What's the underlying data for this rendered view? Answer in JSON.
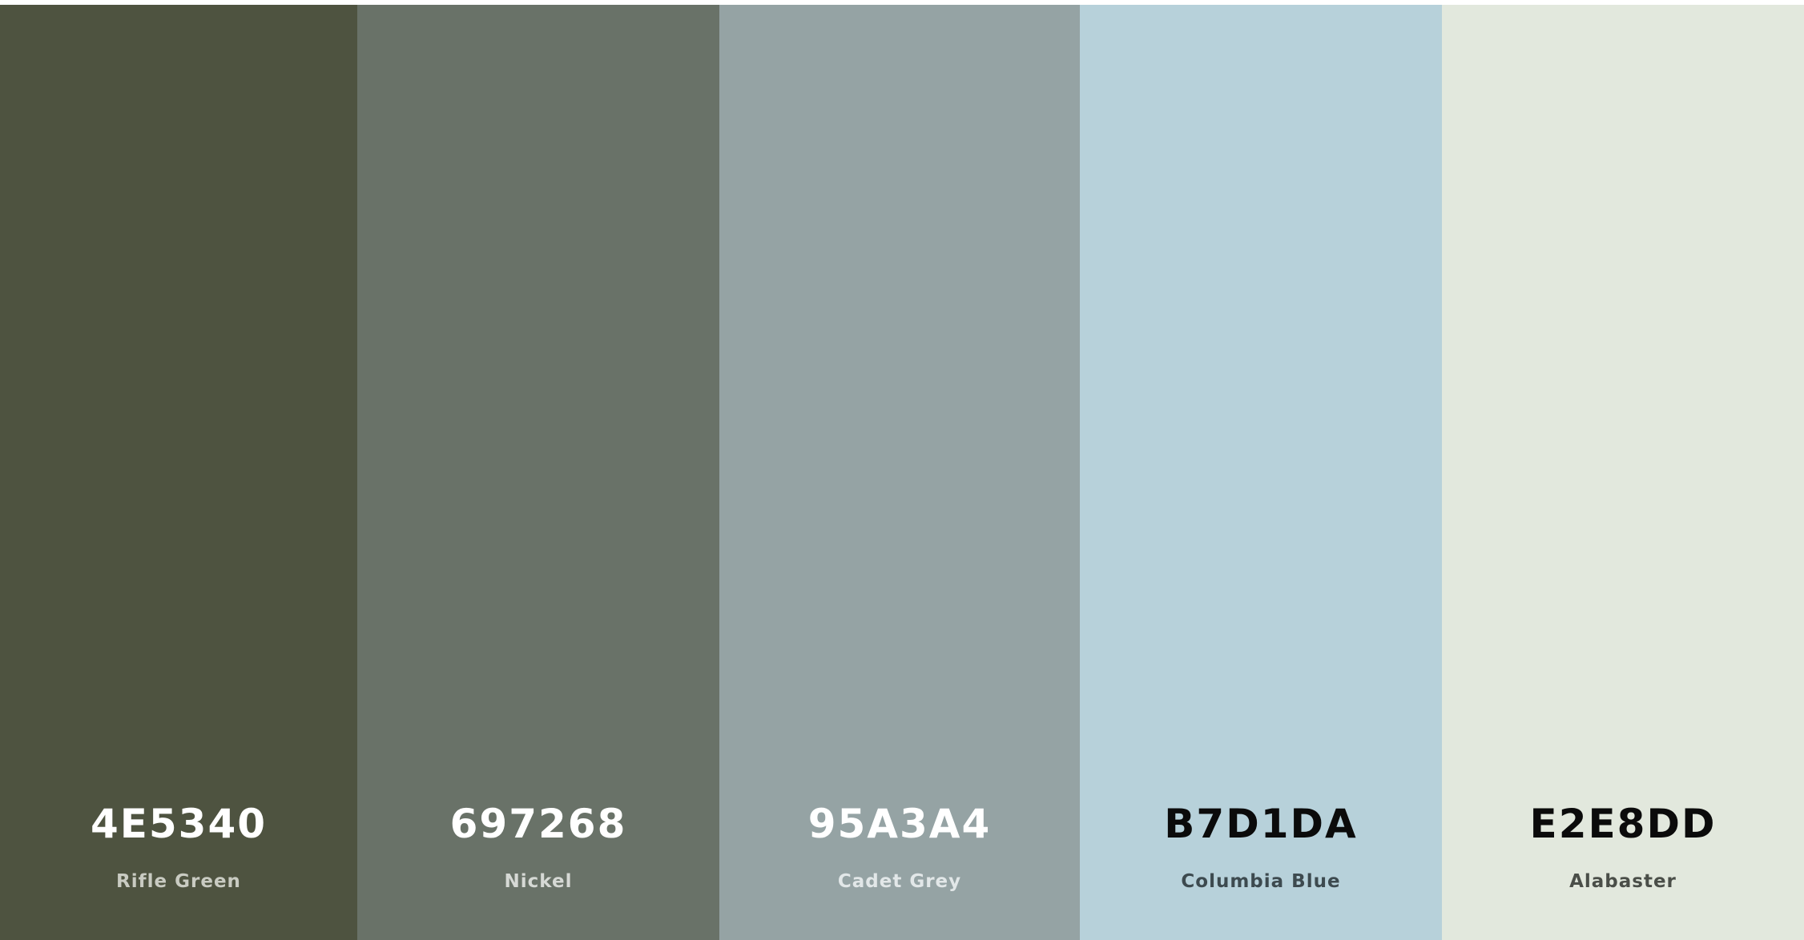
{
  "palette": {
    "swatches": [
      {
        "hex": "4E5340",
        "name": "Rifle Green",
        "bg": "#4E5340",
        "hex_color": "#FFFFFF",
        "name_color": "#C9CBC2"
      },
      {
        "hex": "697268",
        "name": "Nickel",
        "bg": "#697268",
        "hex_color": "#FFFFFF",
        "name_color": "#D6D9D5"
      },
      {
        "hex": "95A3A4",
        "name": "Cadet Grey",
        "bg": "#95A3A4",
        "hex_color": "#FFFFFF",
        "name_color": "#E2E7E8"
      },
      {
        "hex": "B7D1DA",
        "name": "Columbia Blue",
        "bg": "#B7D1DA",
        "hex_color": "#0B0B0B",
        "name_color": "#3D4A4F"
      },
      {
        "hex": "E2E8DD",
        "name": "Alabaster",
        "bg": "#E2E8DD",
        "hex_color": "#0B0B0B",
        "name_color": "#4A4E48"
      }
    ]
  }
}
